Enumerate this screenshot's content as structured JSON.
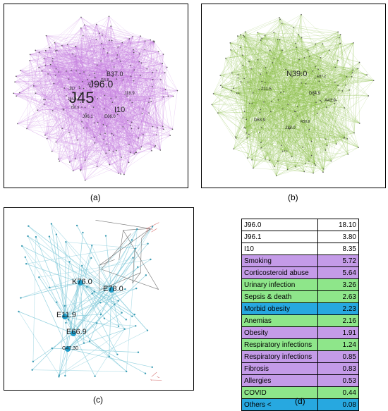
{
  "panel_a": {
    "caption": "(a)",
    "edge_color": "#c77ee0",
    "labels": [
      {
        "text": "J45",
        "cls": "xl"
      },
      {
        "text": "J96.0",
        "cls": "l"
      },
      {
        "text": "B37.0",
        "cls": "m"
      },
      {
        "text": "I10",
        "cls": "m"
      },
      {
        "text": "J18.9",
        "cls": "s"
      },
      {
        "text": "J47",
        "cls": "s"
      },
      {
        "text": "J96.1",
        "cls": "s"
      },
      {
        "text": "E66.0",
        "cls": "s"
      },
      {
        "text": "Z72.0",
        "cls": "xs"
      },
      {
        "text": "J15.8",
        "cls": "xs"
      },
      {
        "text": "J44.9",
        "cls": "xs"
      },
      {
        "text": "I50.9",
        "cls": "xs"
      }
    ]
  },
  "panel_b": {
    "caption": "(b)",
    "edge_color": "#8cbf4a",
    "labels": [
      {
        "text": "N39.0",
        "cls": "m"
      },
      {
        "text": "Z11.5",
        "cls": "xs"
      },
      {
        "text": "D64.9",
        "cls": "xs"
      },
      {
        "text": "A41.9",
        "cls": "xs"
      },
      {
        "text": "D63.9",
        "cls": "xs"
      },
      {
        "text": "J18.0",
        "cls": "xs"
      },
      {
        "text": "E87.2",
        "cls": "xs"
      },
      {
        "text": "R50.9",
        "cls": "xs"
      }
    ]
  },
  "panel_c": {
    "caption": "(c)",
    "edge_color": "#7ec8d8",
    "edge_color_gray": "#555555",
    "edge_color_red": "#d06060",
    "labels": [
      {
        "text": "K76.0",
        "cls": "m"
      },
      {
        "text": "E78.0",
        "cls": "m"
      },
      {
        "text": "E11.9",
        "cls": "m"
      },
      {
        "text": "E66.9",
        "cls": "m"
      },
      {
        "text": "G47.30",
        "cls": "s"
      }
    ]
  },
  "panel_d": {
    "caption": "(d)",
    "rows": [
      {
        "name": "J96.0",
        "value": "18.10",
        "color": "#ffffff"
      },
      {
        "name": "J96.1",
        "value": "3.80",
        "color": "#ffffff"
      },
      {
        "name": "I10",
        "value": "8.35",
        "color": "#ffffff"
      },
      {
        "name": "Smoking",
        "value": "5.72",
        "color": "#c49be8"
      },
      {
        "name": "Corticosteroid abuse",
        "value": "5.64",
        "color": "#c49be8"
      },
      {
        "name": "Urinary infection",
        "value": "3.26",
        "color": "#8ee68a"
      },
      {
        "name": "Sepsis & death",
        "value": "2.63",
        "color": "#8ee68a"
      },
      {
        "name": "Morbid obesity",
        "value": "2.23",
        "color": "#27a8e0"
      },
      {
        "name": "Anemias",
        "value": "2.16",
        "color": "#8ee68a"
      },
      {
        "name": "Obesity",
        "value": "1.91",
        "color": "#c49be8"
      },
      {
        "name": "Respiratory infections",
        "value": "1.24",
        "color": "#8ee68a"
      },
      {
        "name": "Respiratory infections",
        "value": "0.85",
        "color": "#c49be8"
      },
      {
        "name": "Fibrosis",
        "value": "0.83",
        "color": "#c49be8"
      },
      {
        "name": "Allergies",
        "value": "0.53",
        "color": "#c49be8"
      },
      {
        "name": "COVID",
        "value": "0.44",
        "color": "#8ee68a"
      },
      {
        "name": "Others <",
        "value": "0.08",
        "color": "#27a8e0"
      }
    ]
  }
}
